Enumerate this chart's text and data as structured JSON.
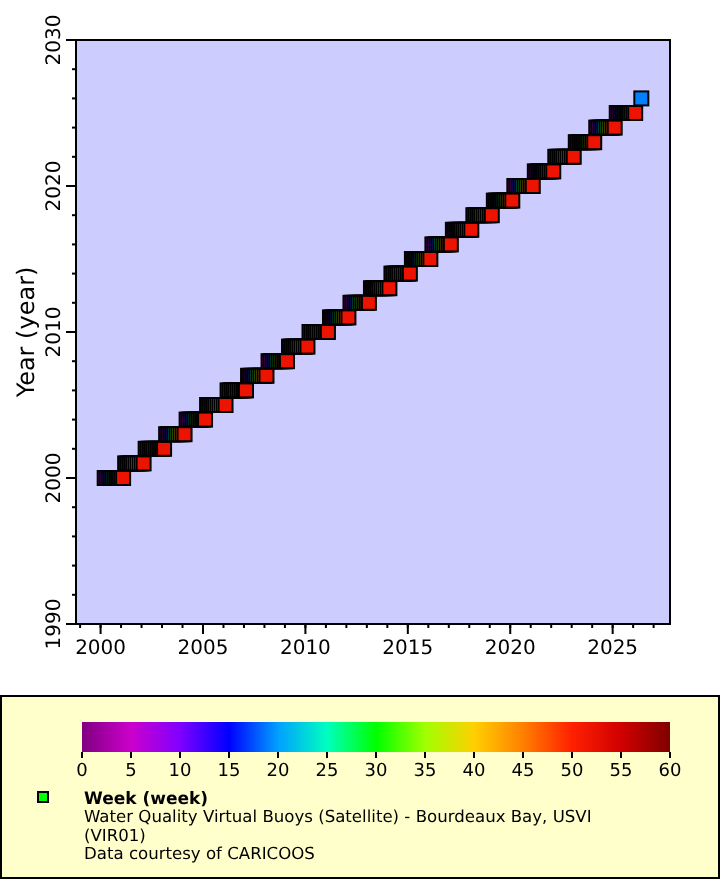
{
  "chart_data": {
    "type": "scatter",
    "ylabel": "Year (year)",
    "xlim": [
      1998.8,
      2027.8
    ],
    "xticks": [
      2000,
      2005,
      2010,
      2015,
      2020,
      2025
    ],
    "ylim": [
      1990,
      2030
    ],
    "yticks": [
      1990,
      2000,
      2010,
      2020,
      2030
    ],
    "clim": [
      0,
      60
    ],
    "cticks": [
      0,
      5,
      10,
      15,
      20,
      25,
      30,
      35,
      40,
      45,
      50,
      55,
      60
    ],
    "marker": "square",
    "legend": "bottom",
    "grid": false,
    "series": [
      {
        "name": "Week (week)",
        "x": [
          2000.2,
          2000.3,
          2000.4,
          2000.5,
          2000.6,
          2000.7,
          2000.8,
          2000.9,
          2001.0,
          2001.1,
          2001.2,
          2001.3,
          2001.4,
          2001.5,
          2001.6,
          2001.7,
          2001.8,
          2001.9,
          2002.0,
          2002.1,
          2002.2,
          2002.3,
          2002.4,
          2002.5,
          2002.6,
          2002.7,
          2002.8,
          2002.9,
          2003.0,
          2003.1,
          2003.2,
          2003.3,
          2003.4,
          2003.5,
          2003.6,
          2003.7,
          2003.8,
          2003.9,
          2004.0,
          2004.1,
          2004.2,
          2004.3,
          2004.4,
          2004.5,
          2004.6,
          2004.7,
          2004.8,
          2004.9,
          2005.0,
          2005.1,
          2005.2,
          2005.3,
          2005.4,
          2005.5,
          2005.6,
          2005.7,
          2005.8,
          2005.9,
          2006.0,
          2006.1,
          2006.2,
          2006.3,
          2006.4,
          2006.5,
          2006.6,
          2006.7,
          2006.8,
          2006.9,
          2007.0,
          2007.1,
          2007.2,
          2007.3,
          2007.4,
          2007.5,
          2007.6,
          2007.7,
          2007.8,
          2007.9,
          2008.0,
          2008.1,
          2008.2,
          2008.3,
          2008.4,
          2008.5,
          2008.6,
          2008.7,
          2008.8,
          2008.9,
          2009.0,
          2009.1,
          2009.2,
          2009.3,
          2009.4,
          2009.5,
          2009.6,
          2009.7,
          2009.8,
          2009.9,
          2010.0,
          2010.1,
          2010.2,
          2010.3,
          2010.4,
          2010.5,
          2010.6,
          2010.7,
          2010.8,
          2010.9,
          2011.0,
          2011.1,
          2011.2,
          2011.3,
          2011.4,
          2011.5,
          2011.6,
          2011.7,
          2011.8,
          2011.9,
          2012.0,
          2012.1,
          2012.2,
          2012.3,
          2012.4,
          2012.5,
          2012.6,
          2012.7,
          2012.8,
          2012.9,
          2013.0,
          2013.1,
          2013.2,
          2013.3,
          2013.4,
          2013.5,
          2013.6,
          2013.7,
          2013.8,
          2013.9,
          2014.0,
          2014.1,
          2014.2,
          2014.3,
          2014.4,
          2014.5,
          2014.6,
          2014.7,
          2014.8,
          2014.9,
          2015.0,
          2015.1,
          2015.2,
          2015.3,
          2015.4,
          2015.5,
          2015.6,
          2015.7,
          2015.8,
          2015.9,
          2016.0,
          2016.1,
          2016.2,
          2016.3,
          2016.4,
          2016.5,
          2016.6,
          2016.7,
          2016.8,
          2016.9,
          2017.0,
          2017.1,
          2017.2,
          2017.3,
          2017.4,
          2017.5,
          2017.6,
          2017.7,
          2017.8,
          2017.9,
          2018.0,
          2018.1,
          2018.2,
          2018.3,
          2018.4,
          2018.5,
          2018.6,
          2018.7,
          2018.8,
          2018.9,
          2019.0,
          2019.1,
          2019.2,
          2019.3,
          2019.4,
          2019.5,
          2019.6,
          2019.7,
          2019.8,
          2019.9,
          2020.0,
          2020.1,
          2020.2,
          2020.3,
          2020.4,
          2020.5,
          2020.6,
          2020.7,
          2020.8,
          2020.9,
          2021.0,
          2021.1,
          2021.2,
          2021.3,
          2021.4,
          2021.5,
          2021.6,
          2021.7,
          2021.8,
          2021.9,
          2022.0,
          2022.1,
          2022.2,
          2022.3,
          2022.4,
          2022.5,
          2022.6,
          2022.7,
          2022.8,
          2022.9,
          2023.0,
          2023.1,
          2023.2,
          2023.3,
          2023.4,
          2023.5,
          2023.6,
          2023.7,
          2023.8,
          2023.9,
          2024.0,
          2024.1,
          2024.2,
          2024.3,
          2024.4,
          2024.5,
          2024.6,
          2024.7,
          2024.8,
          2024.9,
          2025.0,
          2025.1,
          2025.2,
          2025.3,
          2025.4,
          2025.5,
          2025.6,
          2025.7,
          2025.8,
          2025.9,
          2026.0,
          2026.1,
          2026.4
        ],
        "values": [
          2000,
          2000,
          2000,
          2000,
          2000,
          2000,
          2000,
          2000,
          2000,
          2000,
          2001,
          2001,
          2001,
          2001,
          2001,
          2001,
          2001,
          2001,
          2001,
          2001,
          2002,
          2002,
          2002,
          2002,
          2002,
          2002,
          2002,
          2002,
          2002,
          2002,
          2003,
          2003,
          2003,
          2003,
          2003,
          2003,
          2003,
          2003,
          2003,
          2003,
          2004,
          2004,
          2004,
          2004,
          2004,
          2004,
          2004,
          2004,
          2004,
          2004,
          2005,
          2005,
          2005,
          2005,
          2005,
          2005,
          2005,
          2005,
          2005,
          2005,
          2006,
          2006,
          2006,
          2006,
          2006,
          2006,
          2006,
          2006,
          2006,
          2006,
          2007,
          2007,
          2007,
          2007,
          2007,
          2007,
          2007,
          2007,
          2007,
          2007,
          2008,
          2008,
          2008,
          2008,
          2008,
          2008,
          2008,
          2008,
          2008,
          2008,
          2009,
          2009,
          2009,
          2009,
          2009,
          2009,
          2009,
          2009,
          2009,
          2009,
          2010,
          2010,
          2010,
          2010,
          2010,
          2010,
          2010,
          2010,
          2010,
          2010,
          2011,
          2011,
          2011,
          2011,
          2011,
          2011,
          2011,
          2011,
          2011,
          2011,
          2012,
          2012,
          2012,
          2012,
          2012,
          2012,
          2012,
          2012,
          2012,
          2012,
          2013,
          2013,
          2013,
          2013,
          2013,
          2013,
          2013,
          2013,
          2013,
          2013,
          2014,
          2014,
          2014,
          2014,
          2014,
          2014,
          2014,
          2014,
          2014,
          2014,
          2015,
          2015,
          2015,
          2015,
          2015,
          2015,
          2015,
          2015,
          2015,
          2015,
          2016,
          2016,
          2016,
          2016,
          2016,
          2016,
          2016,
          2016,
          2016,
          2016,
          2017,
          2017,
          2017,
          2017,
          2017,
          2017,
          2017,
          2017,
          2017,
          2017,
          2018,
          2018,
          2018,
          2018,
          2018,
          2018,
          2018,
          2018,
          2018,
          2018,
          2019,
          2019,
          2019,
          2019,
          2019,
          2019,
          2019,
          2019,
          2019,
          2019,
          2020,
          2020,
          2020,
          2020,
          2020,
          2020,
          2020,
          2020,
          2020,
          2020,
          2021,
          2021,
          2021,
          2021,
          2021,
          2021,
          2021,
          2021,
          2021,
          2021,
          2022,
          2022,
          2022,
          2022,
          2022,
          2022,
          2022,
          2022,
          2022,
          2022,
          2023,
          2023,
          2023,
          2023,
          2023,
          2023,
          2023,
          2023,
          2023,
          2023,
          2024,
          2024,
          2024,
          2024,
          2024,
          2024,
          2024,
          2024,
          2024,
          2024,
          2025,
          2025,
          2025,
          2025,
          2025,
          2025,
          2025,
          2025,
          2025,
          2025,
          2026
        ],
        "cvalues": [
          1,
          6,
          12,
          17,
          23,
          29,
          35,
          40,
          46,
          52,
          1,
          6,
          12,
          17,
          23,
          29,
          35,
          40,
          46,
          52,
          1,
          6,
          12,
          17,
          23,
          29,
          35,
          40,
          46,
          52,
          1,
          6,
          12,
          17,
          23,
          29,
          35,
          40,
          46,
          52,
          1,
          6,
          12,
          17,
          23,
          29,
          35,
          40,
          46,
          52,
          1,
          6,
          12,
          17,
          23,
          29,
          35,
          40,
          46,
          52,
          1,
          6,
          12,
          17,
          23,
          29,
          35,
          40,
          46,
          52,
          1,
          6,
          12,
          17,
          23,
          29,
          35,
          40,
          46,
          52,
          1,
          6,
          12,
          17,
          23,
          29,
          35,
          40,
          46,
          52,
          1,
          6,
          12,
          17,
          23,
          29,
          35,
          40,
          46,
          52,
          1,
          6,
          12,
          17,
          23,
          29,
          35,
          40,
          46,
          52,
          1,
          6,
          12,
          17,
          23,
          29,
          35,
          40,
          46,
          52,
          1,
          6,
          12,
          17,
          23,
          29,
          35,
          40,
          46,
          52,
          1,
          6,
          12,
          17,
          23,
          29,
          35,
          40,
          46,
          52,
          1,
          6,
          12,
          17,
          23,
          29,
          35,
          40,
          46,
          52,
          1,
          6,
          12,
          17,
          23,
          29,
          35,
          40,
          46,
          52,
          1,
          6,
          12,
          17,
          23,
          29,
          35,
          40,
          46,
          52,
          1,
          6,
          12,
          17,
          23,
          29,
          35,
          40,
          46,
          52,
          1,
          6,
          12,
          17,
          23,
          29,
          35,
          40,
          46,
          52,
          1,
          6,
          12,
          17,
          23,
          29,
          35,
          40,
          46,
          52,
          1,
          6,
          12,
          17,
          23,
          29,
          35,
          40,
          46,
          52,
          1,
          6,
          12,
          17,
          23,
          29,
          35,
          40,
          46,
          52,
          1,
          6,
          12,
          17,
          23,
          29,
          35,
          40,
          46,
          52,
          1,
          6,
          12,
          17,
          23,
          29,
          35,
          40,
          46,
          52,
          1,
          6,
          12,
          17,
          23,
          29,
          35,
          40,
          46,
          52,
          1,
          6,
          12,
          17,
          23,
          29,
          35,
          40,
          46,
          52,
          19
        ]
      }
    ],
    "annotations": [
      "Water Quality Virtual Buoys (Satellite) - Bourdeaux Bay, USVI (VIR01)",
      "Data courtesy of CARICOOS"
    ]
  }
}
